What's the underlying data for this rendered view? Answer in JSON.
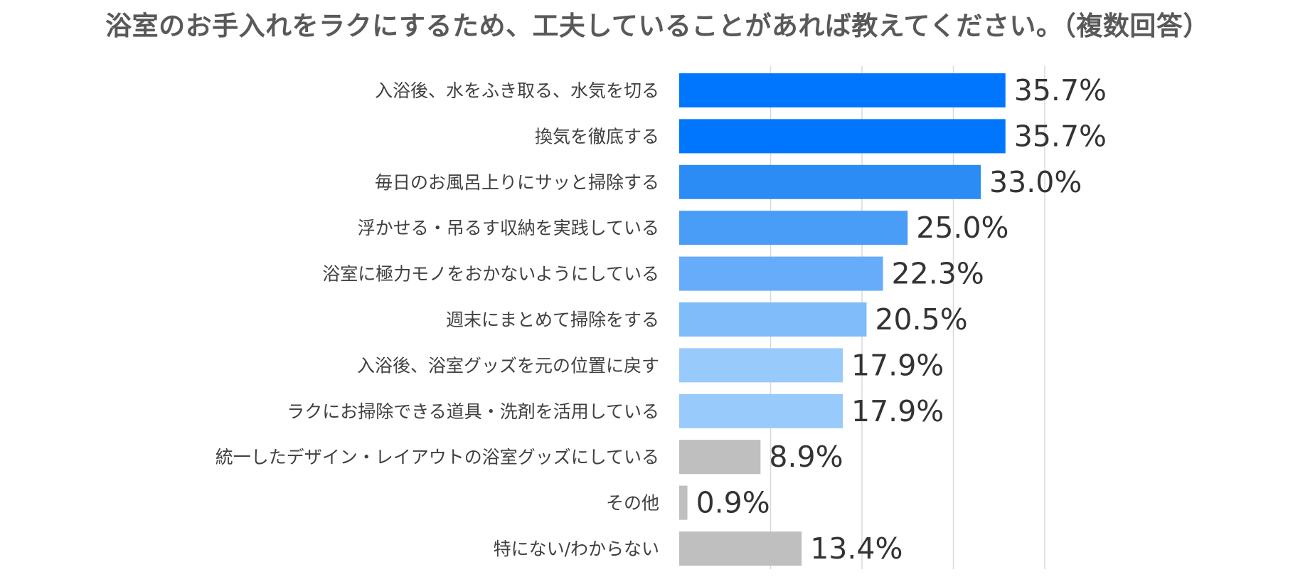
{
  "chart_data": {
    "type": "bar",
    "orientation": "horizontal",
    "title": "浴室のお手入れをラクにするため、工夫していることがあれば教えてください。（複数回答）",
    "categories": [
      "入浴後、水をふき取る、水気を切る",
      "換気を徹底する",
      "毎日のお風呂上りにサッと掃除する",
      "浮かせる・吊るす収納を実践している",
      "浴室に極力モノをおかないようにしている",
      "週末にまとめて掃除をする",
      "入浴後、浴室グッズを元の位置に戻す",
      "ラクにお掃除できる道具・洗剤を活用している",
      "統一したデザイン・レイアウトの浴室グッズにしている",
      "その他",
      "特にない/わからない"
    ],
    "values": [
      35.7,
      35.7,
      33.0,
      25.0,
      22.3,
      20.5,
      17.9,
      17.9,
      8.9,
      0.9,
      13.4
    ],
    "value_labels": [
      "35.7%",
      "35.7%",
      "33.0%",
      "25.0%",
      "22.3%",
      "20.5%",
      "17.9%",
      "17.9%",
      "8.9%",
      "0.9%",
      "13.4%"
    ],
    "bar_colors": [
      "#0076ff",
      "#0076ff",
      "#2b8cf5",
      "#4a9df7",
      "#66acfa",
      "#80bbfa",
      "#99cafc",
      "#99cafc",
      "#bfbfbf",
      "#bfbfbf",
      "#bfbfbf"
    ],
    "xlim": [
      0,
      50
    ],
    "grid": true,
    "gridline_values": [
      10,
      20,
      30,
      40
    ],
    "xlabel": "",
    "ylabel": ""
  }
}
